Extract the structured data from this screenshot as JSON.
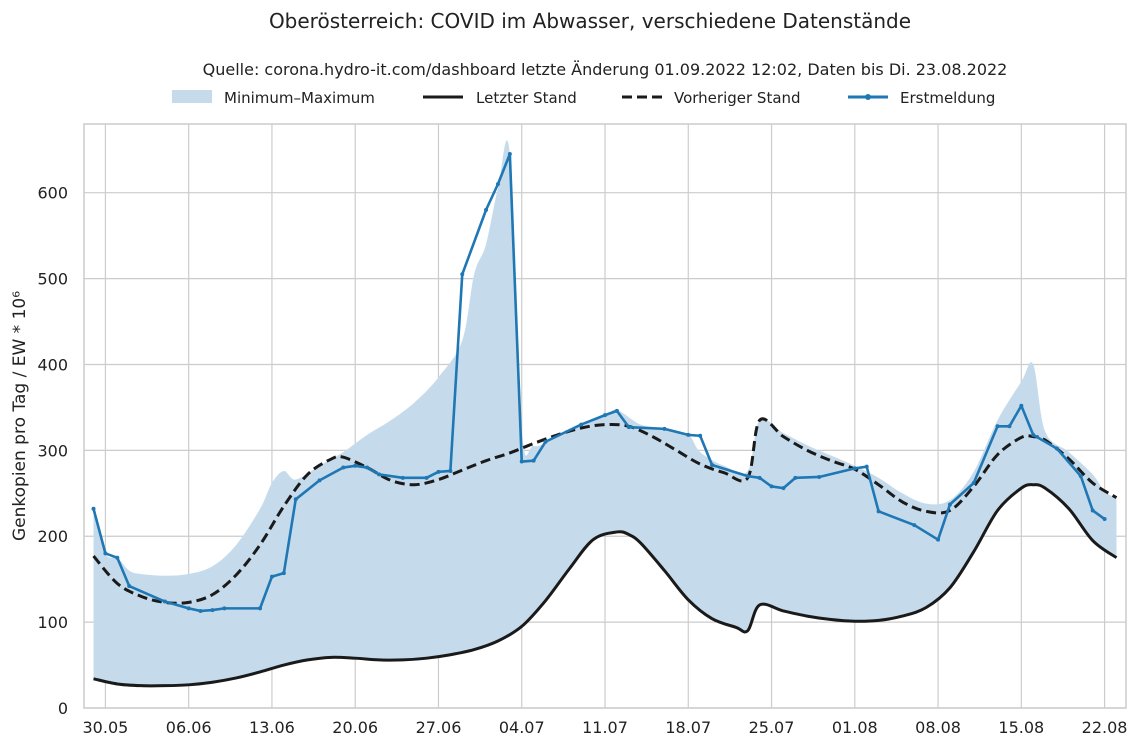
{
  "chart_data": {
    "type": "line",
    "title": "Oberösterreich: COVID im Abwasser, verschiedene Datenstände",
    "subtitle": "Quelle: corona.hydro-it.com/dashboard letzte Änderung 01.09.2022 12:02, Daten bis Di. 23.08.2022",
    "ylabel": "Genkopien pro Tag / EW * 10⁶",
    "xlabel": "",
    "x_start": "2022-05-29",
    "x_end": "2022-08-23",
    "ylim": [
      0,
      680
    ],
    "y_ticks": [
      0,
      100,
      200,
      300,
      400,
      500,
      600
    ],
    "x_ticks": [
      {
        "label": "30.05",
        "date": "2022-05-30"
      },
      {
        "label": "06.06",
        "date": "2022-06-06"
      },
      {
        "label": "13.06",
        "date": "2022-06-13"
      },
      {
        "label": "20.06",
        "date": "2022-06-20"
      },
      {
        "label": "27.06",
        "date": "2022-06-27"
      },
      {
        "label": "04.07",
        "date": "2022-07-04"
      },
      {
        "label": "11.07",
        "date": "2022-07-11"
      },
      {
        "label": "18.07",
        "date": "2022-07-18"
      },
      {
        "label": "25.07",
        "date": "2022-07-25"
      },
      {
        "label": "01.08",
        "date": "2022-08-01"
      },
      {
        "label": "08.08",
        "date": "2022-08-08"
      },
      {
        "label": "15.08",
        "date": "2022-08-15"
      },
      {
        "label": "22.08",
        "date": "2022-08-22"
      }
    ],
    "grid": true,
    "legend_position": "top",
    "legend": [
      {
        "label": "Minimum–Maximum",
        "kind": "band"
      },
      {
        "label": "Letzter Stand",
        "kind": "solid"
      },
      {
        "label": "Vorheriger Stand",
        "kind": "dashed"
      },
      {
        "label": "Erstmeldung",
        "kind": "marker-line"
      }
    ],
    "colors": {
      "band": "#c5dbec",
      "letzter": "#1a1a1a",
      "vorheriger": "#1a1a1a",
      "erst": "#1f77b4",
      "grid": "#cccccc"
    },
    "band_upper": [
      [
        "2022-05-29",
        232
      ],
      [
        "2022-05-30",
        180
      ],
      [
        "2022-05-31",
        175
      ],
      [
        "2022-06-01",
        160
      ],
      [
        "2022-06-02",
        156
      ],
      [
        "2022-06-04",
        154
      ],
      [
        "2022-06-06",
        156
      ],
      [
        "2022-06-08",
        165
      ],
      [
        "2022-06-10",
        190
      ],
      [
        "2022-06-12",
        232
      ],
      [
        "2022-06-13",
        262
      ],
      [
        "2022-06-14",
        276
      ],
      [
        "2022-06-15",
        266
      ],
      [
        "2022-06-17",
        282
      ],
      [
        "2022-06-19",
        298
      ],
      [
        "2022-06-21",
        318
      ],
      [
        "2022-06-23",
        335
      ],
      [
        "2022-06-25",
        356
      ],
      [
        "2022-06-27",
        385
      ],
      [
        "2022-06-29",
        428
      ],
      [
        "2022-06-30",
        505
      ],
      [
        "2022-07-01",
        540
      ],
      [
        "2022-07-02",
        605
      ],
      [
        "2022-07-03",
        645
      ],
      [
        "2022-07-04",
        325
      ],
      [
        "2022-07-05",
        305
      ],
      [
        "2022-07-07",
        315
      ],
      [
        "2022-07-09",
        328
      ],
      [
        "2022-07-11",
        340
      ],
      [
        "2022-07-12",
        347
      ],
      [
        "2022-07-14",
        330
      ],
      [
        "2022-07-16",
        326
      ],
      [
        "2022-07-18",
        318
      ],
      [
        "2022-07-19",
        298
      ],
      [
        "2022-07-21",
        282
      ],
      [
        "2022-07-23",
        276
      ],
      [
        "2022-07-24",
        335
      ],
      [
        "2022-07-26",
        320
      ],
      [
        "2022-07-28",
        306
      ],
      [
        "2022-07-30",
        294
      ],
      [
        "2022-08-01",
        282
      ],
      [
        "2022-08-03",
        268
      ],
      [
        "2022-08-05",
        250
      ],
      [
        "2022-08-07",
        238
      ],
      [
        "2022-08-09",
        242
      ],
      [
        "2022-08-11",
        275
      ],
      [
        "2022-08-13",
        335
      ],
      [
        "2022-08-15",
        380
      ],
      [
        "2022-08-16",
        400
      ],
      [
        "2022-08-17",
        322
      ],
      [
        "2022-08-19",
        298
      ],
      [
        "2022-08-21",
        272
      ],
      [
        "2022-08-22",
        252
      ],
      [
        "2022-08-23",
        245
      ]
    ],
    "series": [
      {
        "name": "Letzter Stand",
        "style": "solid",
        "points": [
          [
            "2022-05-29",
            34
          ],
          [
            "2022-05-31",
            28
          ],
          [
            "2022-06-02",
            26
          ],
          [
            "2022-06-04",
            26
          ],
          [
            "2022-06-06",
            27
          ],
          [
            "2022-06-08",
            30
          ],
          [
            "2022-06-10",
            35
          ],
          [
            "2022-06-12",
            42
          ],
          [
            "2022-06-14",
            50
          ],
          [
            "2022-06-16",
            56
          ],
          [
            "2022-06-18",
            59
          ],
          [
            "2022-06-20",
            58
          ],
          [
            "2022-06-22",
            56
          ],
          [
            "2022-06-24",
            56
          ],
          [
            "2022-06-26",
            58
          ],
          [
            "2022-06-28",
            62
          ],
          [
            "2022-06-30",
            68
          ],
          [
            "2022-07-02",
            78
          ],
          [
            "2022-07-04",
            95
          ],
          [
            "2022-07-06",
            125
          ],
          [
            "2022-07-08",
            162
          ],
          [
            "2022-07-10",
            196
          ],
          [
            "2022-07-12",
            205
          ],
          [
            "2022-07-13",
            202
          ],
          [
            "2022-07-14",
            192
          ],
          [
            "2022-07-16",
            160
          ],
          [
            "2022-07-18",
            126
          ],
          [
            "2022-07-20",
            104
          ],
          [
            "2022-07-22",
            94
          ],
          [
            "2022-07-23",
            90
          ],
          [
            "2022-07-24",
            120
          ],
          [
            "2022-07-26",
            113
          ],
          [
            "2022-07-28",
            107
          ],
          [
            "2022-07-30",
            103
          ],
          [
            "2022-08-01",
            101
          ],
          [
            "2022-08-03",
            102
          ],
          [
            "2022-08-05",
            107
          ],
          [
            "2022-08-07",
            117
          ],
          [
            "2022-08-09",
            140
          ],
          [
            "2022-08-11",
            182
          ],
          [
            "2022-08-13",
            230
          ],
          [
            "2022-08-15",
            256
          ],
          [
            "2022-08-16",
            260
          ],
          [
            "2022-08-17",
            256
          ],
          [
            "2022-08-19",
            232
          ],
          [
            "2022-08-21",
            195
          ],
          [
            "2022-08-23",
            175
          ]
        ]
      },
      {
        "name": "Vorheriger Stand",
        "style": "dashed",
        "points": [
          [
            "2022-05-29",
            177
          ],
          [
            "2022-05-31",
            145
          ],
          [
            "2022-06-02",
            130
          ],
          [
            "2022-06-04",
            123
          ],
          [
            "2022-06-06",
            123
          ],
          [
            "2022-06-08",
            132
          ],
          [
            "2022-06-10",
            155
          ],
          [
            "2022-06-12",
            190
          ],
          [
            "2022-06-14",
            235
          ],
          [
            "2022-06-16",
            272
          ],
          [
            "2022-06-18",
            290
          ],
          [
            "2022-06-19",
            292
          ],
          [
            "2022-06-21",
            280
          ],
          [
            "2022-06-23",
            265
          ],
          [
            "2022-06-25",
            260
          ],
          [
            "2022-06-27",
            266
          ],
          [
            "2022-06-29",
            277
          ],
          [
            "2022-07-01",
            288
          ],
          [
            "2022-07-03",
            297
          ],
          [
            "2022-07-05",
            308
          ],
          [
            "2022-07-07",
            318
          ],
          [
            "2022-07-09",
            326
          ],
          [
            "2022-07-11",
            330
          ],
          [
            "2022-07-13",
            328
          ],
          [
            "2022-07-15",
            316
          ],
          [
            "2022-07-17",
            300
          ],
          [
            "2022-07-19",
            284
          ],
          [
            "2022-07-21",
            274
          ],
          [
            "2022-07-23",
            268
          ],
          [
            "2022-07-24",
            335
          ],
          [
            "2022-07-26",
            316
          ],
          [
            "2022-07-28",
            300
          ],
          [
            "2022-07-30",
            288
          ],
          [
            "2022-08-01",
            278
          ],
          [
            "2022-08-03",
            260
          ],
          [
            "2022-08-05",
            240
          ],
          [
            "2022-08-07",
            229
          ],
          [
            "2022-08-09",
            230
          ],
          [
            "2022-08-11",
            258
          ],
          [
            "2022-08-13",
            295
          ],
          [
            "2022-08-15",
            315
          ],
          [
            "2022-08-16",
            316
          ],
          [
            "2022-08-17",
            312
          ],
          [
            "2022-08-19",
            290
          ],
          [
            "2022-08-21",
            262
          ],
          [
            "2022-08-23",
            245
          ]
        ]
      },
      {
        "name": "Erstmeldung",
        "style": "marker-line",
        "points": [
          [
            "2022-05-29",
            232
          ],
          [
            "2022-05-30",
            180
          ],
          [
            "2022-05-31",
            175
          ],
          [
            "2022-06-01",
            142
          ],
          [
            "2022-06-04",
            124
          ],
          [
            "2022-06-06",
            116
          ],
          [
            "2022-06-07",
            113
          ],
          [
            "2022-06-08",
            114
          ],
          [
            "2022-06-09",
            116
          ],
          [
            "2022-06-12",
            116
          ],
          [
            "2022-06-13",
            153
          ],
          [
            "2022-06-14",
            157
          ],
          [
            "2022-06-15",
            243
          ],
          [
            "2022-06-17",
            265
          ],
          [
            "2022-06-19",
            280
          ],
          [
            "2022-06-20",
            282
          ],
          [
            "2022-06-21",
            280
          ],
          [
            "2022-06-22",
            272
          ],
          [
            "2022-06-24",
            268
          ],
          [
            "2022-06-26",
            268
          ],
          [
            "2022-06-27",
            275
          ],
          [
            "2022-06-28",
            276
          ],
          [
            "2022-06-29",
            505
          ],
          [
            "2022-07-01",
            580
          ],
          [
            "2022-07-02",
            610
          ],
          [
            "2022-07-03",
            645
          ],
          [
            "2022-07-04",
            287
          ],
          [
            "2022-07-05",
            288
          ],
          [
            "2022-07-06",
            310
          ],
          [
            "2022-07-09",
            330
          ],
          [
            "2022-07-11",
            341
          ],
          [
            "2022-07-12",
            346
          ],
          [
            "2022-07-13",
            327
          ],
          [
            "2022-07-16",
            325
          ],
          [
            "2022-07-18",
            318
          ],
          [
            "2022-07-19",
            317
          ],
          [
            "2022-07-20",
            283
          ],
          [
            "2022-07-23",
            270
          ],
          [
            "2022-07-24",
            268
          ],
          [
            "2022-07-25",
            258
          ],
          [
            "2022-07-26",
            256
          ],
          [
            "2022-07-27",
            268
          ],
          [
            "2022-07-29",
            269
          ],
          [
            "2022-08-01",
            279
          ],
          [
            "2022-08-02",
            281
          ],
          [
            "2022-08-03",
            229
          ],
          [
            "2022-08-06",
            213
          ],
          [
            "2022-08-08",
            196
          ],
          [
            "2022-08-09",
            237
          ],
          [
            "2022-08-11",
            262
          ],
          [
            "2022-08-13",
            328
          ],
          [
            "2022-08-14",
            328
          ],
          [
            "2022-08-15",
            352
          ],
          [
            "2022-08-16",
            318
          ],
          [
            "2022-08-18",
            302
          ],
          [
            "2022-08-20",
            270
          ],
          [
            "2022-08-21",
            230
          ],
          [
            "2022-08-22",
            220
          ]
        ]
      }
    ]
  }
}
